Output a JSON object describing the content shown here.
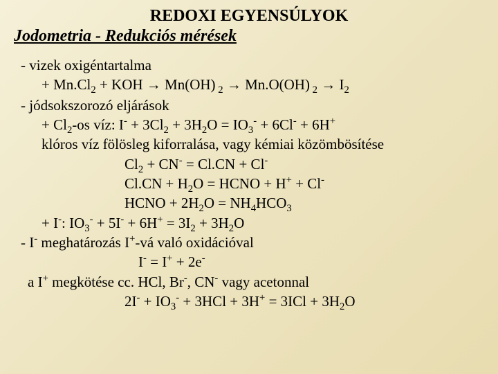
{
  "title": "REDOXI EGYENSÚLYOK",
  "subtitle": "Jodometria - Redukciós mérések",
  "lines": {
    "l1": "- vizek oxigéntartalma",
    "l3": "- jódsokszorozó eljárások",
    "l5": "klóros víz fölösleg kiforralása, vagy kémiai közömbösítése"
  }
}
